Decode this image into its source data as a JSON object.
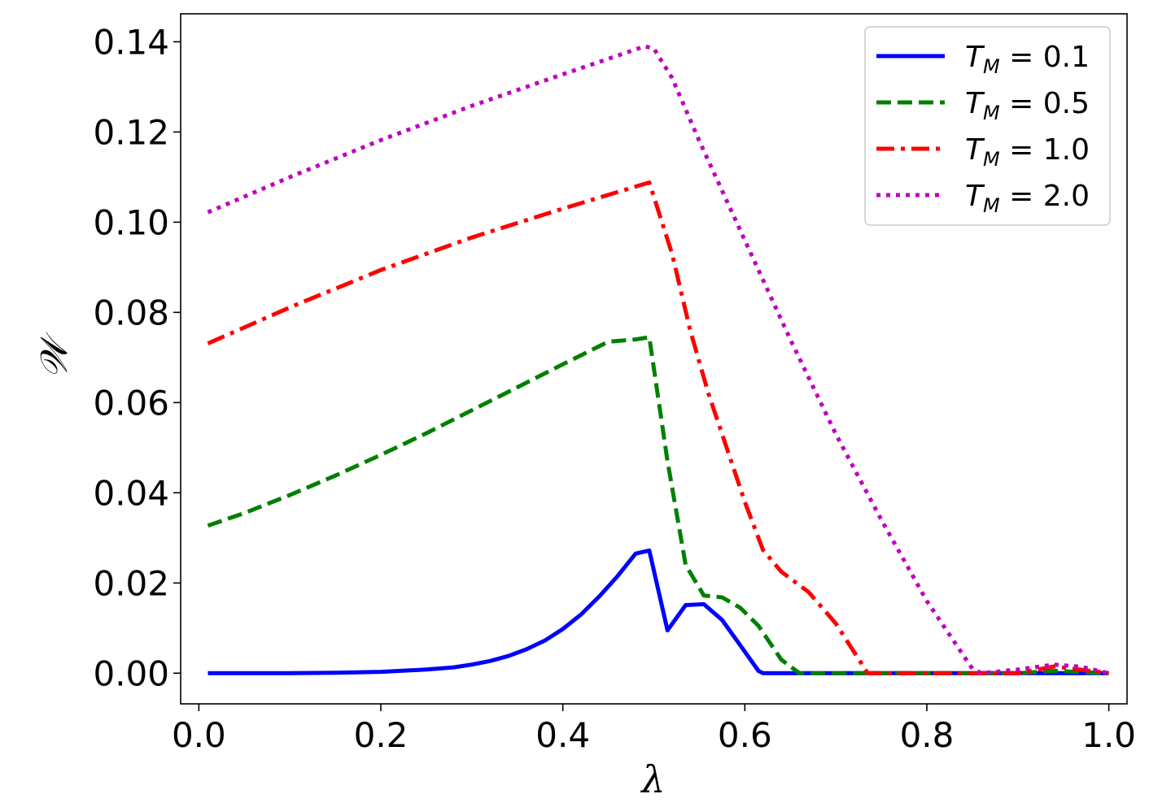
{
  "chart_data": {
    "type": "line",
    "title": "",
    "xlabel": "λ",
    "ylabel": "𝒲",
    "xlim": [
      -0.02,
      1.02
    ],
    "ylim": [
      -0.0068,
      0.1462
    ],
    "xticks": [
      0.0,
      0.2,
      0.4,
      0.6,
      0.8,
      1.0
    ],
    "xtick_labels": [
      "0.0",
      "0.2",
      "0.4",
      "0.6",
      "0.8",
      "1.0"
    ],
    "yticks": [
      0.0,
      0.02,
      0.04,
      0.06,
      0.08,
      0.1,
      0.12,
      0.14
    ],
    "ytick_labels": [
      "0.00",
      "0.02",
      "0.04",
      "0.06",
      "0.08",
      "0.10",
      "0.12",
      "0.14"
    ],
    "grid": false,
    "legend_position": "top-right",
    "series": [
      {
        "name": "T_M = 0.1",
        "label_main": "T",
        "label_sub": "M",
        "label_rest": " = 0.1",
        "color": "#0000ff",
        "style": "solid",
        "x": [
          0.01,
          0.05,
          0.1,
          0.15,
          0.2,
          0.25,
          0.28,
          0.3,
          0.32,
          0.34,
          0.36,
          0.38,
          0.4,
          0.42,
          0.44,
          0.46,
          0.48,
          0.495,
          0.515,
          0.535,
          0.555,
          0.575,
          0.595,
          0.615,
          0.62,
          0.7,
          0.8,
          0.9,
          1.0
        ],
        "y": [
          0.0,
          0.0,
          2e-05,
          0.0001,
          0.0003,
          0.0008,
          0.0013,
          0.0019,
          0.0027,
          0.0038,
          0.0053,
          0.0072,
          0.0098,
          0.013,
          0.017,
          0.0215,
          0.0265,
          0.0272,
          0.0095,
          0.0151,
          0.0153,
          0.0118,
          0.0062,
          0.0005,
          0.0,
          0.0,
          0.0,
          0.0,
          0.0
        ]
      },
      {
        "name": "T_M = 0.5",
        "label_main": "T",
        "label_sub": "M",
        "label_rest": " = 0.5",
        "color": "#008000",
        "style": "dashed",
        "x": [
          0.01,
          0.05,
          0.1,
          0.15,
          0.2,
          0.25,
          0.3,
          0.35,
          0.4,
          0.45,
          0.48,
          0.495,
          0.515,
          0.535,
          0.555,
          0.575,
          0.595,
          0.615,
          0.64,
          0.66,
          0.7,
          0.8,
          0.9,
          0.94,
          1.0
        ],
        "y": [
          0.0327,
          0.0355,
          0.0395,
          0.0438,
          0.0484,
          0.0532,
          0.0583,
          0.0634,
          0.0685,
          0.0735,
          0.074,
          0.0745,
          0.047,
          0.024,
          0.0172,
          0.0168,
          0.0145,
          0.0105,
          0.003,
          0.0,
          0.0,
          0.0,
          0.0,
          0.0005,
          0.0
        ]
      },
      {
        "name": "T_M = 1.0",
        "label_main": "T",
        "label_sub": "M",
        "label_rest": " = 1.0",
        "color": "#ff0000",
        "style": "dashdot",
        "x": [
          0.01,
          0.1,
          0.2,
          0.3,
          0.4,
          0.495,
          0.52,
          0.54,
          0.56,
          0.58,
          0.6,
          0.62,
          0.64,
          0.67,
          0.7,
          0.735,
          0.8,
          0.9,
          0.94,
          1.0
        ],
        "y": [
          0.0731,
          0.0811,
          0.0894,
          0.0966,
          0.103,
          0.1088,
          0.093,
          0.076,
          0.062,
          0.05,
          0.038,
          0.0273,
          0.0225,
          0.018,
          0.011,
          0.0,
          0.0,
          0.0,
          0.0015,
          0.0
        ]
      },
      {
        "name": "T_M = 2.0",
        "label_main": "T",
        "label_sub": "M",
        "label_rest": " = 2.0",
        "color": "#bf00bf",
        "style": "dotted",
        "x": [
          0.01,
          0.1,
          0.2,
          0.3,
          0.4,
          0.49,
          0.5,
          0.52,
          0.55,
          0.6,
          0.65,
          0.7,
          0.75,
          0.8,
          0.85,
          0.86,
          0.9,
          0.94,
          0.97,
          1.0
        ],
        "y": [
          0.1022,
          0.11,
          0.1182,
          0.1258,
          0.1328,
          0.139,
          0.1385,
          0.132,
          0.118,
          0.096,
          0.074,
          0.053,
          0.034,
          0.016,
          0.001,
          0.0,
          0.0008,
          0.0019,
          0.0014,
          0.0
        ]
      }
    ]
  }
}
